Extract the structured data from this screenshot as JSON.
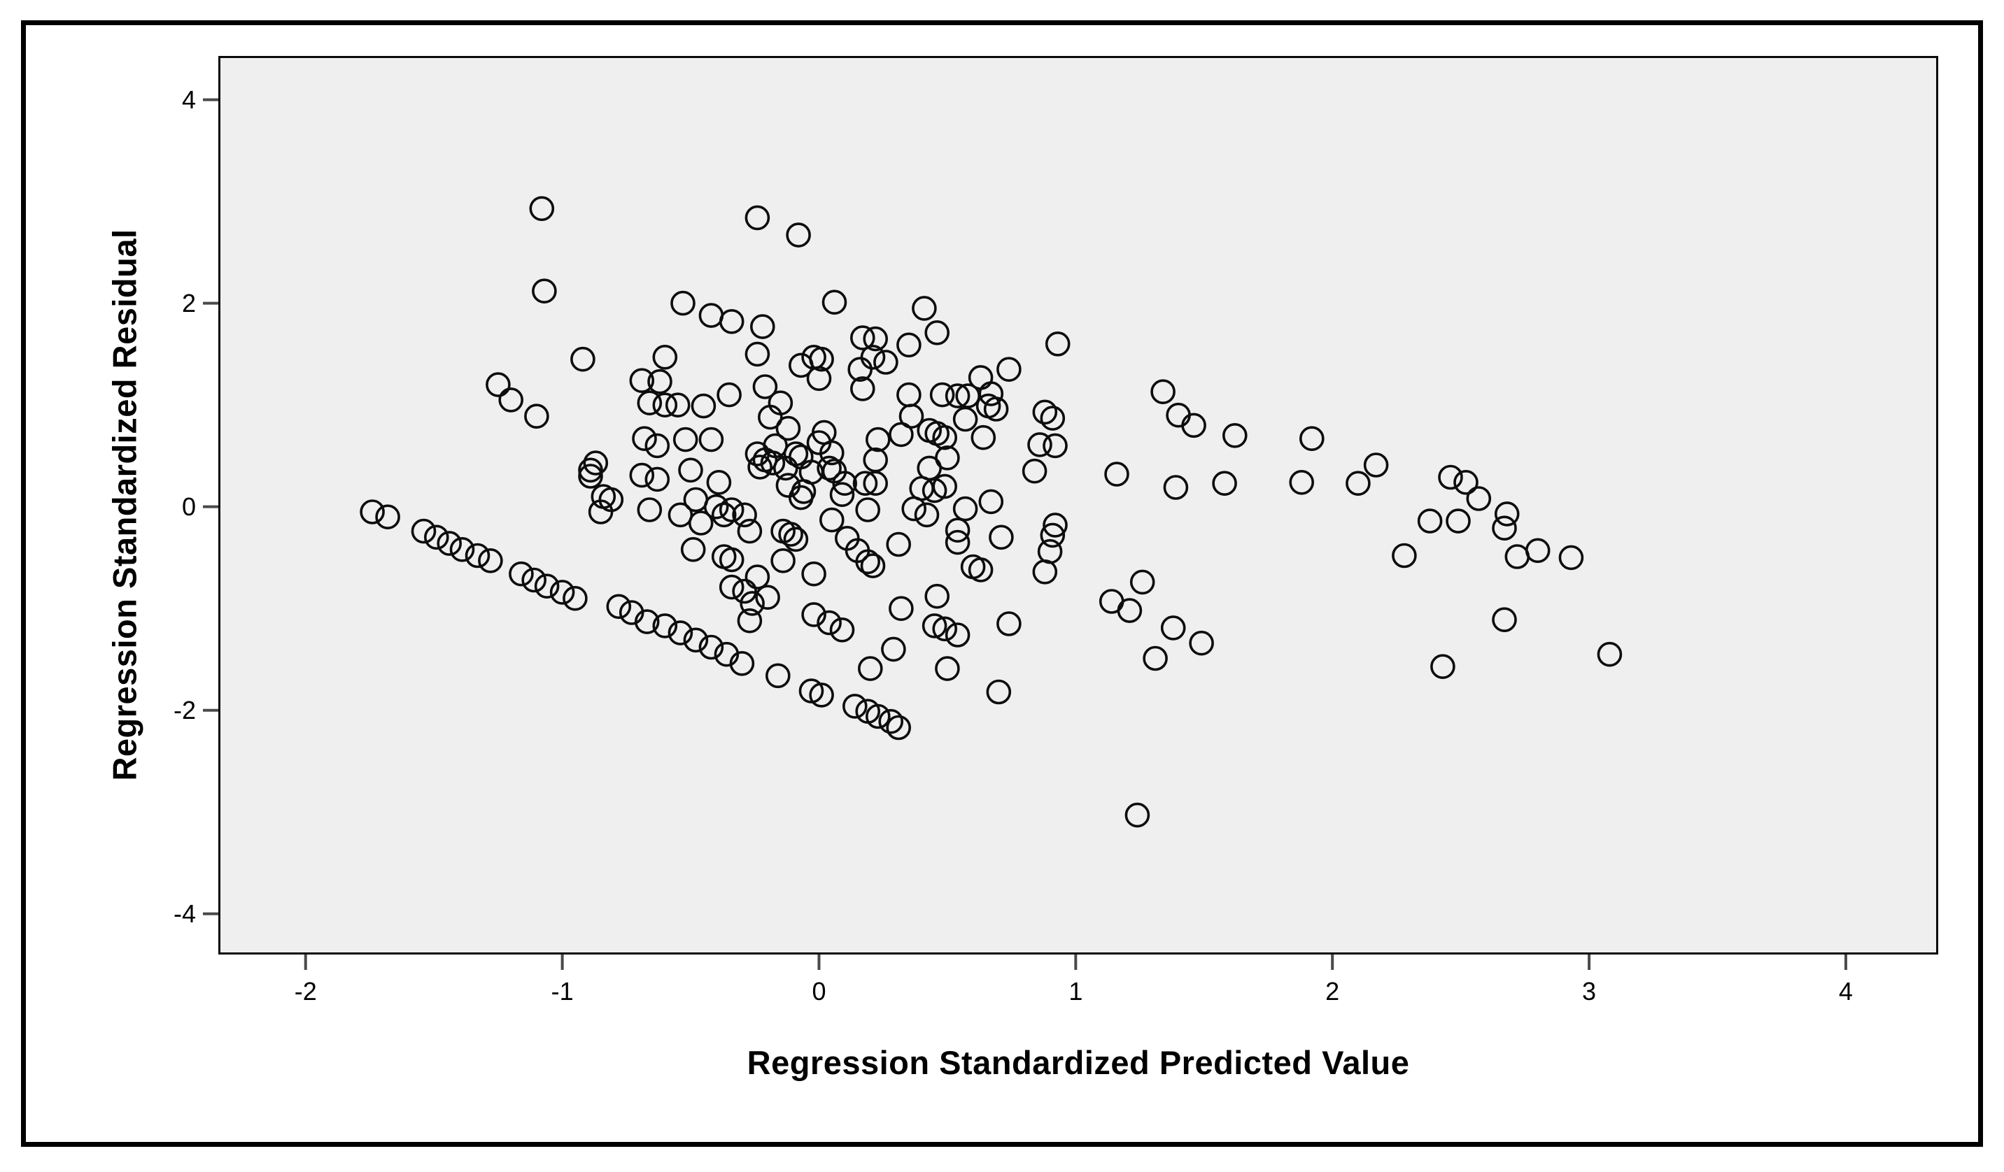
{
  "chart_data": {
    "type": "scatter",
    "title": "",
    "xlabel": "Regression Standardized Predicted Value",
    "ylabel": "Regression Standardized Residual",
    "x_ticks": [
      -2,
      -1,
      0,
      1,
      2,
      3,
      4
    ],
    "y_ticks": [
      4,
      2,
      0,
      -2,
      -4
    ],
    "xlim": [
      -2.34,
      4.36
    ],
    "ylim": [
      -4.4,
      4.43
    ],
    "grid": false,
    "legend": "none",
    "marker": "open-circle",
    "points": [
      [
        -1.74,
        -0.05
      ],
      [
        -1.68,
        -0.1
      ],
      [
        -1.54,
        -0.24
      ],
      [
        -1.49,
        -0.3
      ],
      [
        -1.44,
        -0.36
      ],
      [
        -1.39,
        -0.42
      ],
      [
        -1.33,
        -0.48
      ],
      [
        -1.28,
        -0.53
      ],
      [
        -1.16,
        -0.66
      ],
      [
        -1.11,
        -0.72
      ],
      [
        -1.06,
        -0.78
      ],
      [
        -1.0,
        -0.84
      ],
      [
        -0.95,
        -0.9
      ],
      [
        -0.78,
        -0.98
      ],
      [
        -0.73,
        -1.04
      ],
      [
        -0.67,
        -1.13
      ],
      [
        -0.6,
        -1.17
      ],
      [
        -0.54,
        -1.24
      ],
      [
        -0.48,
        -1.31
      ],
      [
        -0.42,
        -1.38
      ],
      [
        -0.36,
        -1.45
      ],
      [
        -0.3,
        -1.54
      ],
      [
        0.14,
        -1.96
      ],
      [
        0.19,
        -2.01
      ],
      [
        0.23,
        -2.06
      ],
      [
        0.28,
        -2.11
      ],
      [
        0.31,
        -2.17
      ],
      [
        -0.02,
        -1.06
      ],
      [
        0.04,
        -1.14
      ],
      [
        0.09,
        -1.21
      ],
      [
        -0.16,
        -1.66
      ],
      [
        -0.03,
        -1.81
      ],
      [
        0.01,
        -1.85
      ],
      [
        -1.08,
        2.93
      ],
      [
        -1.07,
        2.12
      ],
      [
        -0.92,
        1.45
      ],
      [
        -1.25,
        1.2
      ],
      [
        -1.2,
        1.05
      ],
      [
        -1.1,
        0.89
      ],
      [
        -0.53,
        2.0
      ],
      [
        -0.42,
        1.88
      ],
      [
        -0.34,
        1.82
      ],
      [
        -0.6,
        1.47
      ],
      [
        -0.69,
        1.24
      ],
      [
        -0.62,
        1.23
      ],
      [
        -0.66,
        1.02
      ],
      [
        -0.6,
        1.0
      ],
      [
        -0.55,
        1.0
      ],
      [
        -0.45,
        0.99
      ],
      [
        -0.35,
        1.1
      ],
      [
        -0.68,
        0.67
      ],
      [
        -0.63,
        0.6
      ],
      [
        -0.52,
        0.66
      ],
      [
        -0.42,
        0.66
      ],
      [
        -0.87,
        0.43
      ],
      [
        -0.89,
        0.36
      ],
      [
        -0.24,
        2.84
      ],
      [
        -0.08,
        2.67
      ],
      [
        0.06,
        2.01
      ],
      [
        0.41,
        1.95
      ],
      [
        0.46,
        1.71
      ],
      [
        -0.22,
        1.77
      ],
      [
        -0.24,
        1.5
      ],
      [
        0.17,
        1.66
      ],
      [
        0.22,
        1.65
      ],
      [
        0.35,
        1.59
      ],
      [
        0.21,
        1.47
      ],
      [
        0.26,
        1.42
      ],
      [
        -0.02,
        1.47
      ],
      [
        0.01,
        1.45
      ],
      [
        -0.07,
        1.39
      ],
      [
        0.16,
        1.35
      ],
      [
        0.0,
        1.26
      ],
      [
        0.17,
        1.16
      ],
      [
        0.74,
        1.35
      ],
      [
        0.63,
        1.27
      ],
      [
        0.93,
        1.6
      ],
      [
        0.67,
        1.11
      ],
      [
        0.48,
        1.1
      ],
      [
        0.54,
        1.09
      ],
      [
        0.58,
        1.09
      ],
      [
        0.35,
        1.1
      ],
      [
        0.66,
        0.99
      ],
      [
        0.69,
        0.96
      ],
      [
        0.57,
        0.86
      ],
      [
        0.64,
        0.68
      ],
      [
        0.36,
        0.89
      ],
      [
        0.43,
        0.75
      ],
      [
        0.46,
        0.72
      ],
      [
        0.49,
        0.68
      ],
      [
        0.32,
        0.71
      ],
      [
        0.23,
        0.66
      ],
      [
        0.91,
        0.87
      ],
      [
        0.88,
        0.93
      ],
      [
        0.86,
        0.61
      ],
      [
        0.92,
        0.6
      ],
      [
        1.34,
        1.13
      ],
      [
        1.4,
        0.9
      ],
      [
        1.46,
        0.8
      ],
      [
        -0.21,
        1.18
      ],
      [
        -0.15,
        1.02
      ],
      [
        -0.19,
        0.88
      ],
      [
        -0.12,
        0.77
      ],
      [
        -0.17,
        0.6
      ],
      [
        0.02,
        0.73
      ],
      [
        0.0,
        0.63
      ],
      [
        -0.09,
        0.52
      ],
      [
        -0.89,
        0.3
      ],
      [
        -0.84,
        0.1
      ],
      [
        -0.81,
        0.07
      ],
      [
        -0.85,
        -0.05
      ],
      [
        -0.69,
        0.31
      ],
      [
        -0.63,
        0.27
      ],
      [
        -0.66,
        -0.03
      ],
      [
        -0.5,
        0.36
      ],
      [
        -0.39,
        0.24
      ],
      [
        -0.54,
        -0.08
      ],
      [
        -0.48,
        0.07
      ],
      [
        -0.46,
        -0.16
      ],
      [
        -0.4,
        0.0
      ],
      [
        -0.34,
        -0.03
      ],
      [
        -0.37,
        -0.08
      ],
      [
        -0.49,
        -0.42
      ],
      [
        -0.37,
        -0.49
      ],
      [
        -0.34,
        -0.52
      ],
      [
        -0.34,
        -0.79
      ],
      [
        -0.29,
        -0.83
      ],
      [
        0.22,
        0.46
      ],
      [
        0.22,
        0.23
      ],
      [
        0.43,
        0.38
      ],
      [
        0.5,
        0.48
      ],
      [
        0.4,
        0.18
      ],
      [
        0.45,
        0.16
      ],
      [
        0.49,
        0.2
      ],
      [
        0.37,
        -0.02
      ],
      [
        0.42,
        -0.08
      ],
      [
        0.57,
        -0.02
      ],
      [
        0.67,
        0.05
      ],
      [
        0.54,
        -0.23
      ],
      [
        0.54,
        -0.35
      ],
      [
        0.71,
        -0.3
      ],
      [
        0.84,
        0.35
      ],
      [
        0.92,
        -0.18
      ],
      [
        0.91,
        -0.28
      ],
      [
        0.9,
        -0.44
      ],
      [
        0.88,
        -0.64
      ],
      [
        0.6,
        -0.59
      ],
      [
        0.63,
        -0.62
      ],
      [
        0.31,
        -0.37
      ],
      [
        0.11,
        -0.31
      ],
      [
        0.15,
        -0.43
      ],
      [
        0.19,
        -0.54
      ],
      [
        0.21,
        -0.58
      ],
      [
        0.05,
        -0.13
      ],
      [
        -0.02,
        -0.66
      ],
      [
        -0.14,
        -0.53
      ],
      [
        -0.24,
        -0.69
      ],
      [
        -0.2,
        -0.89
      ],
      [
        -0.26,
        -0.95
      ],
      [
        -0.27,
        -1.12
      ],
      [
        0.32,
        -1.0
      ],
      [
        0.46,
        -0.88
      ],
      [
        0.45,
        -1.17
      ],
      [
        0.49,
        -1.2
      ],
      [
        0.54,
        -1.26
      ],
      [
        0.74,
        -1.15
      ],
      [
        0.29,
        -1.4
      ],
      [
        0.2,
        -1.59
      ],
      [
        0.5,
        -1.59
      ],
      [
        0.7,
        -1.82
      ],
      [
        1.26,
        -0.74
      ],
      [
        1.14,
        -0.93
      ],
      [
        1.21,
        -1.02
      ],
      [
        1.38,
        -1.19
      ],
      [
        1.31,
        -1.49
      ],
      [
        1.49,
        -1.34
      ],
      [
        1.16,
        0.32
      ],
      [
        1.39,
        0.19
      ],
      [
        -0.24,
        0.52
      ],
      [
        -0.21,
        0.46
      ],
      [
        -0.23,
        0.39
      ],
      [
        -0.18,
        0.43
      ],
      [
        -0.07,
        0.49
      ],
      [
        0.05,
        0.53
      ],
      [
        -0.13,
        0.38
      ],
      [
        -0.03,
        0.34
      ],
      [
        0.04,
        0.38
      ],
      [
        0.06,
        0.35
      ],
      [
        -0.12,
        0.21
      ],
      [
        -0.06,
        0.15
      ],
      [
        0.1,
        0.23
      ],
      [
        0.18,
        0.23
      ],
      [
        0.09,
        0.12
      ],
      [
        0.19,
        -0.03
      ],
      [
        -0.07,
        0.09
      ],
      [
        -0.29,
        -0.08
      ],
      [
        -0.27,
        -0.24
      ],
      [
        -0.14,
        -0.24
      ],
      [
        -0.11,
        -0.27
      ],
      [
        -0.09,
        -0.32
      ],
      [
        1.62,
        0.7
      ],
      [
        1.92,
        0.67
      ],
      [
        1.58,
        0.23
      ],
      [
        1.88,
        0.24
      ],
      [
        2.1,
        0.23
      ],
      [
        2.17,
        0.41
      ],
      [
        2.46,
        0.29
      ],
      [
        2.52,
        0.24
      ],
      [
        2.57,
        0.08
      ],
      [
        2.38,
        -0.14
      ],
      [
        2.49,
        -0.14
      ],
      [
        2.68,
        -0.07
      ],
      [
        2.67,
        -0.21
      ],
      [
        2.28,
        -0.48
      ],
      [
        2.72,
        -0.49
      ],
      [
        2.8,
        -0.43
      ],
      [
        2.93,
        -0.5
      ],
      [
        2.67,
        -1.11
      ],
      [
        2.43,
        -1.57
      ],
      [
        3.08,
        -1.45
      ],
      [
        1.24,
        -3.03
      ]
    ]
  },
  "colors": {
    "page_bg": "#ffffff",
    "plot_bg": "#efefef",
    "frame": "#000000",
    "marker": "#0d0d0d",
    "tick": "#4a4a4a",
    "text": "#000000"
  }
}
